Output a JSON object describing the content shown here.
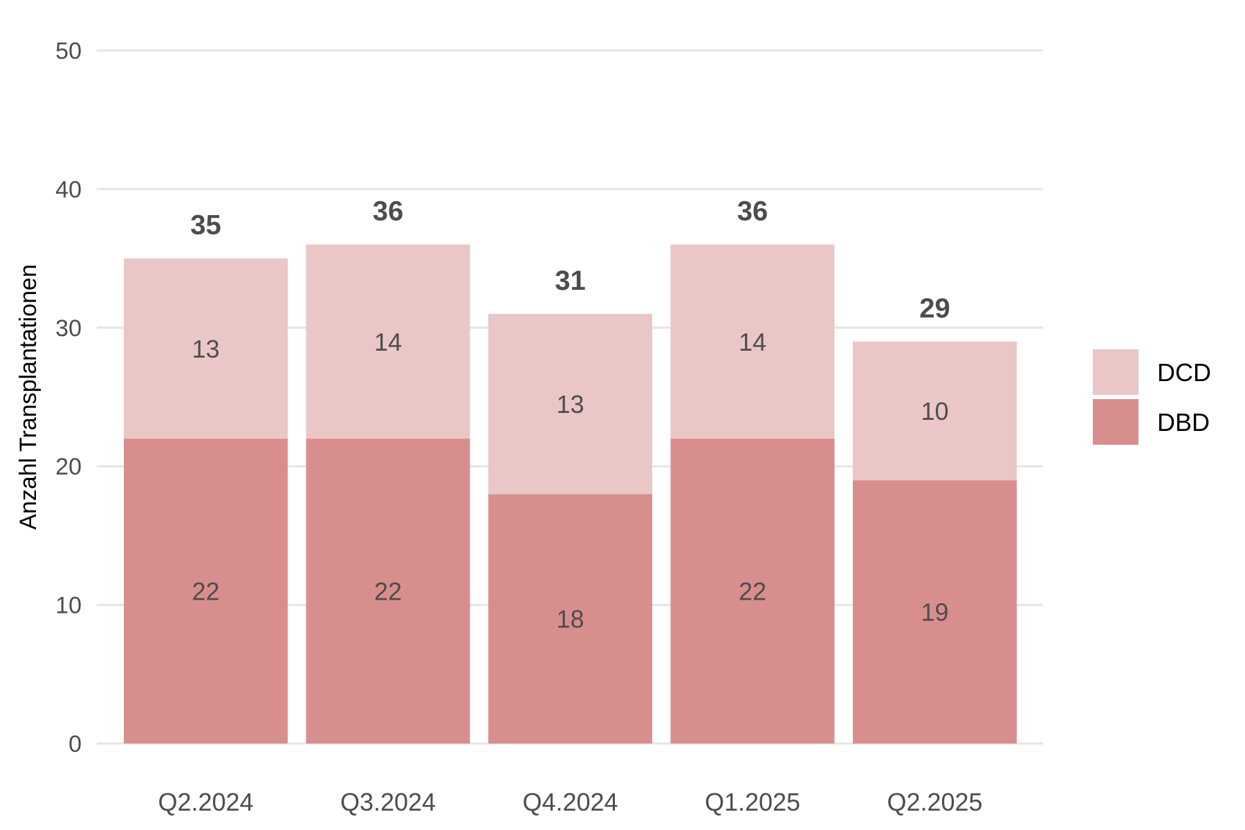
{
  "chart_data": {
    "type": "bar",
    "stacked": true,
    "categories": [
      "Q2.2024",
      "Q3.2024",
      "Q4.2024",
      "Q1.2025",
      "Q2.2025"
    ],
    "series": [
      {
        "name": "DBD",
        "values": [
          22,
          22,
          18,
          22,
          19
        ],
        "color": "#d98e8e"
      },
      {
        "name": "DCD",
        "values": [
          13,
          14,
          13,
          14,
          10
        ],
        "color": "#ebc6c6"
      }
    ],
    "totals": [
      35,
      36,
      31,
      36,
      29
    ],
    "title": "",
    "xlabel": "",
    "ylabel": "Anzahl Transplantationen",
    "ylim": [
      0,
      50
    ],
    "yticks": [
      0,
      10,
      20,
      30,
      40,
      50
    ],
    "grid": true,
    "legend_position": "right"
  }
}
